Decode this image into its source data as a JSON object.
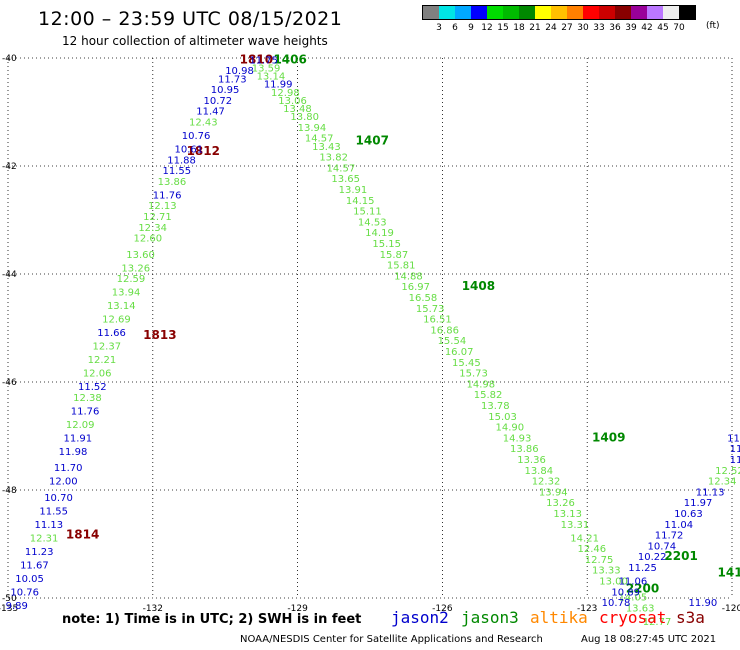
{
  "header": {
    "title": "12:00 – 23:59 UTC 08/15/2021",
    "subtitle": "12 hour collection of altimeter wave heights"
  },
  "colorbar": {
    "colors": [
      "#808080",
      "#00e5e5",
      "#00a8ff",
      "#0000ff",
      "#00dd00",
      "#00bb00",
      "#008800",
      "#ffff00",
      "#ffc000",
      "#ff8000",
      "#ff0000",
      "#cc0000",
      "#880000",
      "#990099",
      "#bb77ff",
      "#eeeeee",
      "#000000"
    ],
    "labels": [
      "3",
      "6",
      "9",
      "12",
      "15",
      "18",
      "21",
      "24",
      "27",
      "30",
      "33",
      "36",
      "39",
      "42",
      "45",
      "70"
    ],
    "unit": "(ft)"
  },
  "footer": {
    "note": "note: 1) Time is in UTC; 2) SWH is in feet",
    "legend": [
      {
        "name": "jason2",
        "color": "#0000cc"
      },
      {
        "name": "jason3",
        "color": "#008800"
      },
      {
        "name": "altika",
        "color": "#ff8800"
      },
      {
        "name": "cryosat",
        "color": "#ff0000"
      },
      {
        "name": "s3a",
        "color": "#880000"
      }
    ],
    "credit": "NOAA/NESDIS Center for Satellite Applications and Research",
    "timestamp": "Aug 18 08:27:45 UTC 2021"
  },
  "chart_data": {
    "type": "scatter",
    "title": "12:00 – 23:59 UTC 08/15/2021",
    "subtitle": "12 hour collection of altimeter wave heights",
    "xlabel": "",
    "ylabel": "",
    "xlim": [
      -135,
      -120
    ],
    "ylim": [
      -50,
      -40
    ],
    "x_ticks": [
      "-135",
      "-132",
      "-129",
      "-126",
      "-123",
      "-120"
    ],
    "y_ticks": [
      "-40",
      "-42",
      "-44",
      "-46",
      "-48",
      "-50"
    ],
    "grid": "dotted",
    "colors": {
      "light": "#66dd44",
      "blue": "#0000cc",
      "dkgreen": "#008800",
      "dkred": "#880000"
    },
    "series": [
      {
        "name": "s3a",
        "color": "#880000",
        "points": [
          {
            "x": -130.2,
            "y": -40.1,
            "v": "1810"
          },
          {
            "x": -131.3,
            "y": -41.8,
            "v": "1812"
          },
          {
            "x": -132.2,
            "y": -45.2,
            "v": "1813"
          },
          {
            "x": -133.8,
            "y": -48.9,
            "v": "1814"
          }
        ]
      },
      {
        "name": "jason3",
        "color": "#008800",
        "points": [
          {
            "x": -129.5,
            "y": -40.1,
            "v": "1406"
          },
          {
            "x": -127.8,
            "y": -41.6,
            "v": "1407"
          },
          {
            "x": -125.6,
            "y": -44.3,
            "v": "1408"
          },
          {
            "x": -122.9,
            "y": -47.1,
            "v": "1409"
          },
          {
            "x": -121.4,
            "y": -49.3,
            "v": "2201"
          },
          {
            "x": -120.3,
            "y": -49.6,
            "v": "1410"
          },
          {
            "x": -122.2,
            "y": -49.9,
            "v": "2200"
          }
        ]
      },
      {
        "name": "track A",
        "color": "mixed",
        "points": [
          {
            "x": -130.0,
            "y": -40.1,
            "v": "11.75",
            "c": "blue"
          },
          {
            "x": -130.5,
            "y": -40.3,
            "v": "10.98",
            "c": "blue"
          },
          {
            "x": -130.65,
            "y": -40.45,
            "v": "11.73",
            "c": "blue"
          },
          {
            "x": -130.8,
            "y": -40.65,
            "v": "10.95",
            "c": "blue"
          },
          {
            "x": -130.95,
            "y": -40.85,
            "v": "10.72",
            "c": "blue"
          },
          {
            "x": -131.1,
            "y": -41.05,
            "v": "11.47",
            "c": "blue"
          },
          {
            "x": -131.25,
            "y": -41.25,
            "v": "12.43",
            "c": "light"
          },
          {
            "x": -131.4,
            "y": -41.5,
            "v": "10.76",
            "c": "blue"
          },
          {
            "x": -131.55,
            "y": -41.75,
            "v": "10.61",
            "c": "blue"
          },
          {
            "x": -131.7,
            "y": -41.95,
            "v": "11.88",
            "c": "blue"
          },
          {
            "x": -131.8,
            "y": -42.15,
            "v": "11.55",
            "c": "blue"
          },
          {
            "x": -131.9,
            "y": -42.35,
            "v": "13.86",
            "c": "light"
          },
          {
            "x": -132.0,
            "y": -42.6,
            "v": "11.76",
            "c": "blue"
          },
          {
            "x": -132.1,
            "y": -42.8,
            "v": "12.13",
            "c": "light"
          },
          {
            "x": -132.2,
            "y": -43.0,
            "v": "12.71",
            "c": "light"
          },
          {
            "x": -132.3,
            "y": -43.2,
            "v": "12.34",
            "c": "light"
          },
          {
            "x": -132.4,
            "y": -43.4,
            "v": "12.60",
            "c": "light"
          },
          {
            "x": -132.55,
            "y": -43.7,
            "v": "13.60",
            "c": "light"
          },
          {
            "x": -132.65,
            "y": -43.95,
            "v": "13.26",
            "c": "light"
          },
          {
            "x": -132.75,
            "y": -44.15,
            "v": "12.59",
            "c": "light"
          },
          {
            "x": -132.85,
            "y": -44.4,
            "v": "13.94",
            "c": "light"
          },
          {
            "x": -132.95,
            "y": -44.65,
            "v": "13.14",
            "c": "light"
          },
          {
            "x": -133.05,
            "y": -44.9,
            "v": "12.69",
            "c": "light"
          },
          {
            "x": -133.15,
            "y": -45.15,
            "v": "11.66",
            "c": "blue"
          },
          {
            "x": -133.25,
            "y": -45.4,
            "v": "12.37",
            "c": "light"
          },
          {
            "x": -133.35,
            "y": -45.65,
            "v": "12.21",
            "c": "light"
          },
          {
            "x": -133.45,
            "y": -45.9,
            "v": "12.06",
            "c": "light"
          },
          {
            "x": -133.55,
            "y": -46.15,
            "v": "11.52",
            "c": "blue"
          },
          {
            "x": -133.65,
            "y": -46.35,
            "v": "12.38",
            "c": "light"
          },
          {
            "x": -133.7,
            "y": -46.6,
            "v": "11.76",
            "c": "blue"
          },
          {
            "x": -133.8,
            "y": -46.85,
            "v": "12.09",
            "c": "light"
          },
          {
            "x": -133.85,
            "y": -47.1,
            "v": "11.91",
            "c": "blue"
          },
          {
            "x": -133.95,
            "y": -47.35,
            "v": "11.98",
            "c": "blue"
          },
          {
            "x": -134.05,
            "y": -47.65,
            "v": "11.70",
            "c": "blue"
          },
          {
            "x": -134.15,
            "y": -47.9,
            "v": "12.00",
            "c": "blue"
          },
          {
            "x": -134.25,
            "y": -48.2,
            "v": "10.70",
            "c": "blue"
          },
          {
            "x": -134.35,
            "y": -48.45,
            "v": "11.55",
            "c": "blue"
          },
          {
            "x": -134.45,
            "y": -48.7,
            "v": "11.13",
            "c": "blue"
          },
          {
            "x": -134.55,
            "y": -48.95,
            "v": "12.31",
            "c": "light"
          },
          {
            "x": -134.65,
            "y": -49.2,
            "v": "11.23",
            "c": "blue"
          },
          {
            "x": -134.75,
            "y": -49.45,
            "v": "11.67",
            "c": "blue"
          },
          {
            "x": -134.85,
            "y": -49.7,
            "v": "10.05",
            "c": "blue"
          },
          {
            "x": -134.95,
            "y": -49.95,
            "v": "10.76",
            "c": "blue"
          },
          {
            "x": -135.05,
            "y": -50.2,
            "v": "9.89",
            "c": "blue"
          }
        ]
      },
      {
        "name": "track B",
        "color": "mixed",
        "points": [
          {
            "x": -129.95,
            "y": -40.25,
            "v": "13.59",
            "c": "light"
          },
          {
            "x": -129.85,
            "y": -40.4,
            "v": "13.14",
            "c": "light"
          },
          {
            "x": -129.7,
            "y": -40.55,
            "v": "11.99",
            "c": "blue"
          },
          {
            "x": -129.55,
            "y": -40.7,
            "v": "12.98",
            "c": "light"
          },
          {
            "x": -129.4,
            "y": -40.85,
            "v": "13.06",
            "c": "light"
          },
          {
            "x": -129.3,
            "y": -41.0,
            "v": "13.48",
            "c": "light"
          },
          {
            "x": -129.15,
            "y": -41.15,
            "v": "13.80",
            "c": "light"
          },
          {
            "x": -129.0,
            "y": -41.35,
            "v": "13.94",
            "c": "light"
          },
          {
            "x": -128.85,
            "y": -41.55,
            "v": "14.57",
            "c": "light"
          },
          {
            "x": -128.7,
            "y": -41.7,
            "v": "13.43",
            "c": "light"
          },
          {
            "x": -128.55,
            "y": -41.9,
            "v": "13.82",
            "c": "light"
          },
          {
            "x": -128.4,
            "y": -42.1,
            "v": "14.57",
            "c": "light"
          },
          {
            "x": -128.3,
            "y": -42.3,
            "v": "13.65",
            "c": "light"
          },
          {
            "x": -128.15,
            "y": -42.5,
            "v": "13.91",
            "c": "light"
          },
          {
            "x": -128.0,
            "y": -42.7,
            "v": "14.15",
            "c": "light"
          },
          {
            "x": -127.85,
            "y": -42.9,
            "v": "15.11",
            "c": "light"
          },
          {
            "x": -127.75,
            "y": -43.1,
            "v": "14.53",
            "c": "light"
          },
          {
            "x": -127.6,
            "y": -43.3,
            "v": "14.19",
            "c": "light"
          },
          {
            "x": -127.45,
            "y": -43.5,
            "v": "15.15",
            "c": "light"
          },
          {
            "x": -127.3,
            "y": -43.7,
            "v": "15.87",
            "c": "light"
          },
          {
            "x": -127.15,
            "y": -43.9,
            "v": "15.81",
            "c": "light"
          },
          {
            "x": -127.0,
            "y": -44.1,
            "v": "14.88",
            "c": "light"
          },
          {
            "x": -126.85,
            "y": -44.3,
            "v": "16.97",
            "c": "light"
          },
          {
            "x": -126.7,
            "y": -44.5,
            "v": "16.58",
            "c": "light"
          },
          {
            "x": -126.55,
            "y": -44.7,
            "v": "15.73",
            "c": "light"
          },
          {
            "x": -126.4,
            "y": -44.9,
            "v": "16.51",
            "c": "light"
          },
          {
            "x": -126.25,
            "y": -45.1,
            "v": "16.86",
            "c": "light"
          },
          {
            "x": -126.1,
            "y": -45.3,
            "v": "15.54",
            "c": "light"
          },
          {
            "x": -125.95,
            "y": -45.5,
            "v": "16.07",
            "c": "light"
          },
          {
            "x": -125.8,
            "y": -45.7,
            "v": "15.45",
            "c": "light"
          },
          {
            "x": -125.65,
            "y": -45.9,
            "v": "15.73",
            "c": "light"
          },
          {
            "x": -125.5,
            "y": -46.1,
            "v": "14.98",
            "c": "light"
          },
          {
            "x": -125.35,
            "y": -46.3,
            "v": "15.82",
            "c": "light"
          },
          {
            "x": -125.2,
            "y": -46.5,
            "v": "13.78",
            "c": "light"
          },
          {
            "x": -125.05,
            "y": -46.7,
            "v": "15.03",
            "c": "light"
          },
          {
            "x": -124.9,
            "y": -46.9,
            "v": "14.90",
            "c": "light"
          },
          {
            "x": -124.75,
            "y": -47.1,
            "v": "14.93",
            "c": "light"
          },
          {
            "x": -124.6,
            "y": -47.3,
            "v": "13.86",
            "c": "light"
          },
          {
            "x": -124.45,
            "y": -47.5,
            "v": "13.36",
            "c": "light"
          },
          {
            "x": -124.3,
            "y": -47.7,
            "v": "13.84",
            "c": "light"
          },
          {
            "x": -124.15,
            "y": -47.9,
            "v": "12.32",
            "c": "light"
          },
          {
            "x": -124.0,
            "y": -48.1,
            "v": "13.94",
            "c": "light"
          },
          {
            "x": -123.85,
            "y": -48.3,
            "v": "13.26",
            "c": "light"
          },
          {
            "x": -123.7,
            "y": -48.5,
            "v": "13.13",
            "c": "light"
          },
          {
            "x": -123.55,
            "y": -48.7,
            "v": "13.31",
            "c": "light"
          },
          {
            "x": -123.35,
            "y": -48.95,
            "v": "14.21",
            "c": "light"
          },
          {
            "x": -123.2,
            "y": -49.15,
            "v": "12.46",
            "c": "light"
          },
          {
            "x": -123.05,
            "y": -49.35,
            "v": "12.75",
            "c": "light"
          },
          {
            "x": -122.9,
            "y": -49.55,
            "v": "13.33",
            "c": "light"
          },
          {
            "x": -122.75,
            "y": -49.75,
            "v": "13.00",
            "c": "light"
          },
          {
            "x": -122.35,
            "y": -50.05,
            "v": "14.05",
            "c": "light"
          },
          {
            "x": -122.2,
            "y": -50.25,
            "v": "13.63",
            "c": "light"
          },
          {
            "x": -121.85,
            "y": -50.5,
            "v": "12.77",
            "c": "light"
          }
        ]
      },
      {
        "name": "track C",
        "color": "mixed",
        "points": [
          {
            "x": -120.05,
            "y": -47.3,
            "v": "11.6",
            "c": "blue"
          },
          {
            "x": -120.05,
            "y": -47.5,
            "v": "11.34",
            "c": "blue"
          },
          {
            "x": -120.35,
            "y": -47.7,
            "v": "12.52",
            "c": "light"
          },
          {
            "x": -120.5,
            "y": -47.9,
            "v": "12.34",
            "c": "light"
          },
          {
            "x": -120.75,
            "y": -48.1,
            "v": "11.13",
            "c": "blue"
          },
          {
            "x": -121.0,
            "y": -48.3,
            "v": "11.97",
            "c": "blue"
          },
          {
            "x": -121.2,
            "y": -48.5,
            "v": "10.63",
            "c": "blue"
          },
          {
            "x": -121.4,
            "y": -48.7,
            "v": "11.04",
            "c": "blue"
          },
          {
            "x": -121.6,
            "y": -48.9,
            "v": "11.72",
            "c": "blue"
          },
          {
            "x": -121.75,
            "y": -49.1,
            "v": "10.74",
            "c": "blue"
          },
          {
            "x": -121.95,
            "y": -49.3,
            "v": "10.22",
            "c": "blue"
          },
          {
            "x": -122.15,
            "y": -49.5,
            "v": "11.25",
            "c": "blue"
          },
          {
            "x": -122.35,
            "y": -49.75,
            "v": "11.06",
            "c": "blue"
          },
          {
            "x": -122.5,
            "y": -49.95,
            "v": "10.89",
            "c": "blue"
          },
          {
            "x": -122.7,
            "y": -50.15,
            "v": "10.78",
            "c": "blue"
          },
          {
            "x": -120.9,
            "y": -50.15,
            "v": "11.90",
            "c": "blue"
          },
          {
            "x": -120.1,
            "y": -47.1,
            "v": "11",
            "c": "blue"
          }
        ]
      }
    ]
  }
}
